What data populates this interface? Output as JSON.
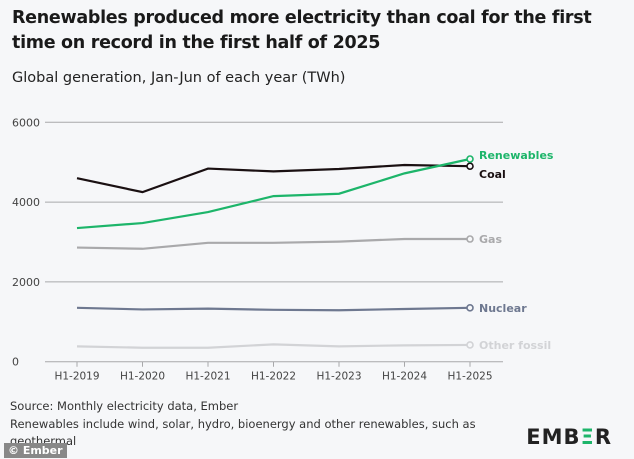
{
  "chart_data": {
    "type": "line",
    "title": "Renewables produced more electricity than coal for the first time on record in the first half of 2025",
    "subtitle": "Global generation, Jan-Jun of each year (TWh)",
    "categories": [
      "H1-2019",
      "H1-2020",
      "H1-2021",
      "H1-2022",
      "H1-2023",
      "H1-2024",
      "H1-2025"
    ],
    "ylim": [
      0,
      6000
    ],
    "yticks": [
      0,
      2000,
      4000,
      6000
    ],
    "grid": true,
    "legend": "direct labels at line ends (right)",
    "series": [
      {
        "name": "Renewables",
        "color": "#1db56a",
        "values": [
          3350,
          3475,
          3750,
          4150,
          4210,
          4720,
          5080
        ]
      },
      {
        "name": "Coal",
        "color": "#1a1012",
        "values": [
          4600,
          4250,
          4840,
          4770,
          4830,
          4930,
          4900
        ]
      },
      {
        "name": "Gas",
        "color": "#a9a9ab",
        "values": [
          2860,
          2830,
          2980,
          2980,
          3010,
          3075,
          3075
        ]
      },
      {
        "name": "Nuclear",
        "color": "#6e7890",
        "values": [
          1350,
          1310,
          1330,
          1300,
          1290,
          1320,
          1350
        ]
      },
      {
        "name": "Other fossil",
        "color": "#d2d3d6",
        "values": [
          385,
          350,
          350,
          435,
          385,
          410,
          420
        ]
      }
    ]
  },
  "footer": {
    "source": "Source: Monthly electricity data, Ember",
    "note": "Renewables include wind, solar, hydro, bioenergy and other renewables, such as geothermal",
    "logo": "EMBER",
    "credit": "© Ember"
  }
}
